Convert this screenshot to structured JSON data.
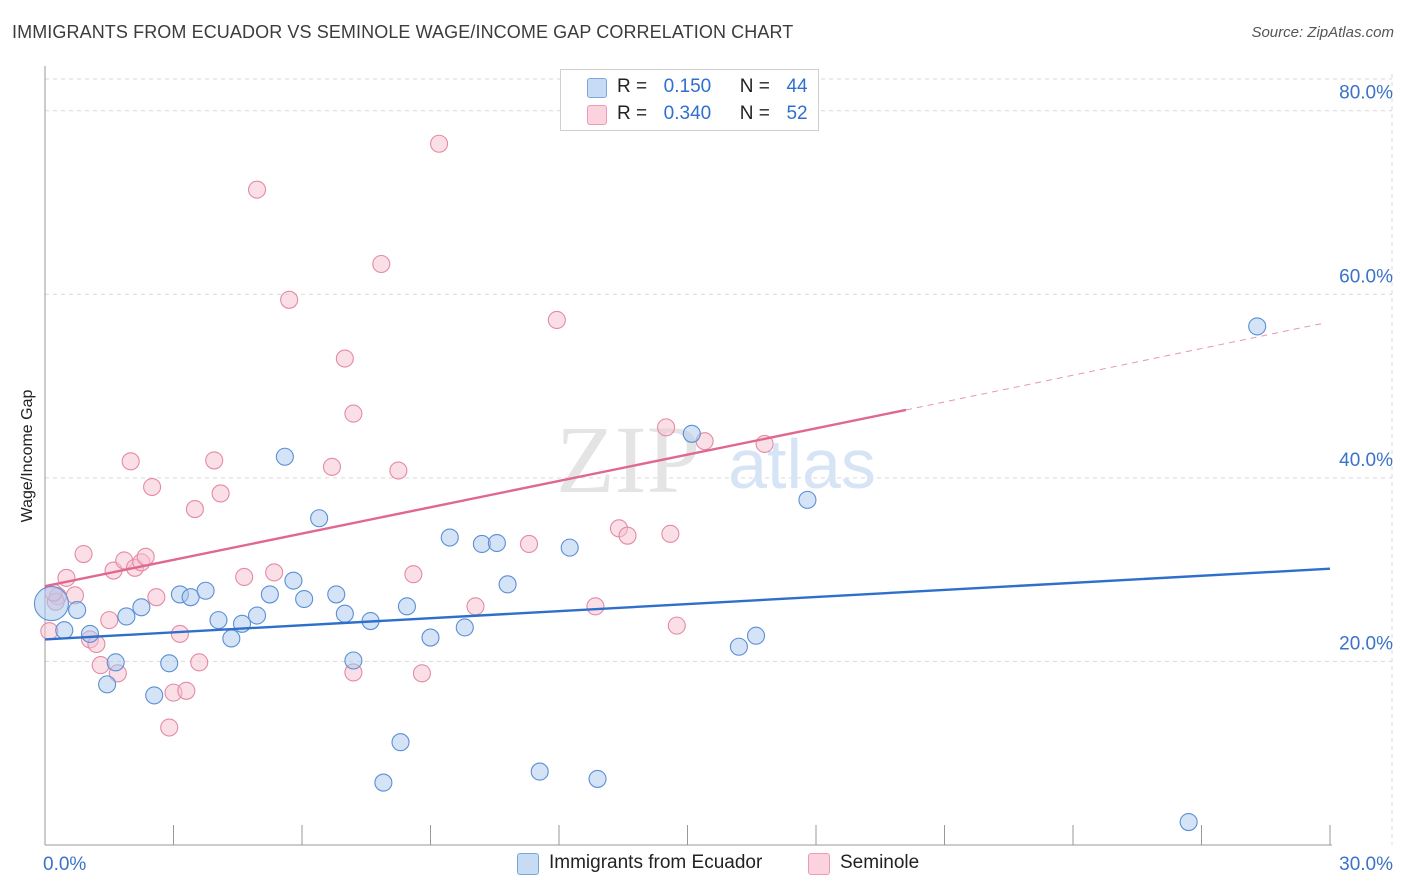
{
  "title": "IMMIGRANTS FROM ECUADOR VS SEMINOLE WAGE/INCOME GAP CORRELATION CHART",
  "source": "Source: ZipAtlas.com",
  "watermark": {
    "zip": "ZIP",
    "atlas": "atlas"
  },
  "colors": {
    "blue_fill": "#a9c8ee",
    "blue_stroke": "#5b8fd6",
    "blue_line": "#2e6fcc",
    "pink_fill": "#f7bfd0",
    "pink_stroke": "#e48aa5",
    "pink_line": "#e06890",
    "tick_label": "#3a72c8",
    "grid": "#d9d9d9"
  },
  "legend_top": [
    {
      "series": "blue",
      "r_label": "R =",
      "r_value": "0.150",
      "n_label": "N =",
      "n_value": "44"
    },
    {
      "series": "pink",
      "r_label": "R =",
      "r_value": "0.340",
      "n_label": "N =",
      "n_value": "52"
    }
  ],
  "legend_bottom": [
    {
      "series": "blue",
      "label": "Immigrants from Ecuador"
    },
    {
      "series": "pink",
      "label": "Seminole"
    }
  ],
  "chart_data": {
    "type": "scatter",
    "title": "IMMIGRANTS FROM ECUADOR VS SEMINOLE WAGE/INCOME GAP CORRELATION CHART",
    "xlabel": "",
    "ylabel": "Wage/Income Gap",
    "xlim": [
      0,
      30
    ],
    "ylim": [
      0,
      84
    ],
    "x_tick_labels": [
      {
        "value": 0,
        "label": "0.0%"
      },
      {
        "value": 30,
        "label": "30.0%"
      }
    ],
    "y_tick_labels": [
      {
        "value": 20,
        "label": "20.0%"
      },
      {
        "value": 40,
        "label": "40.0%"
      },
      {
        "value": 60,
        "label": "60.0%"
      },
      {
        "value": 80,
        "label": "80.0%"
      }
    ],
    "series": [
      {
        "name": "Immigrants from Ecuador",
        "color": "blue",
        "r": 0.15,
        "n": 44,
        "trend": {
          "x": [
            0,
            30
          ],
          "y": [
            22.4,
            30.1
          ]
        },
        "points": [
          [
            0.15,
            26.3
          ],
          [
            0.45,
            23.4
          ],
          [
            0.75,
            25.6
          ],
          [
            1.05,
            23.0
          ],
          [
            1.65,
            19.9
          ],
          [
            1.45,
            17.5
          ],
          [
            1.9,
            24.9
          ],
          [
            2.25,
            25.9
          ],
          [
            2.55,
            16.3
          ],
          [
            2.9,
            19.8
          ],
          [
            3.15,
            27.3
          ],
          [
            3.4,
            27.0
          ],
          [
            3.75,
            27.7
          ],
          [
            4.05,
            24.5
          ],
          [
            4.35,
            22.5
          ],
          [
            4.6,
            24.1
          ],
          [
            4.95,
            25.0
          ],
          [
            5.25,
            27.3
          ],
          [
            5.6,
            42.3
          ],
          [
            5.8,
            28.8
          ],
          [
            6.05,
            26.8
          ],
          [
            6.4,
            35.6
          ],
          [
            6.8,
            27.3
          ],
          [
            7.0,
            25.2
          ],
          [
            7.2,
            20.1
          ],
          [
            7.6,
            24.4
          ],
          [
            8.3,
            11.2
          ],
          [
            7.9,
            6.8
          ],
          [
            8.45,
            26.0
          ],
          [
            9.0,
            22.6
          ],
          [
            9.45,
            33.5
          ],
          [
            9.8,
            23.7
          ],
          [
            10.2,
            32.8
          ],
          [
            10.55,
            32.9
          ],
          [
            10.8,
            28.4
          ],
          [
            11.55,
            8.0
          ],
          [
            12.25,
            32.4
          ],
          [
            12.9,
            7.2
          ],
          [
            15.1,
            44.8
          ],
          [
            16.2,
            21.6
          ],
          [
            16.6,
            22.8
          ],
          [
            17.8,
            37.6
          ],
          [
            28.3,
            56.5
          ],
          [
            26.7,
            2.5
          ]
        ]
      },
      {
        "name": "Seminole",
        "color": "pink",
        "r": 0.34,
        "n": 52,
        "trend": {
          "x": [
            0,
            20.1
          ],
          "y": [
            28.2,
            47.4
          ]
        },
        "trend_dashed": {
          "x": [
            20.1,
            29.9
          ],
          "y": [
            47.4,
            56.9
          ]
        },
        "points": [
          [
            0.1,
            23.3
          ],
          [
            0.3,
            27.1
          ],
          [
            0.5,
            29.1
          ],
          [
            0.7,
            27.2
          ],
          [
            0.9,
            31.7
          ],
          [
            1.05,
            22.4
          ],
          [
            1.2,
            21.9
          ],
          [
            1.3,
            19.6
          ],
          [
            1.5,
            24.5
          ],
          [
            1.6,
            29.9
          ],
          [
            1.7,
            18.7
          ],
          [
            1.85,
            31.0
          ],
          [
            2.0,
            41.8
          ],
          [
            2.1,
            30.2
          ],
          [
            2.25,
            30.8
          ],
          [
            2.35,
            31.4
          ],
          [
            2.5,
            39.0
          ],
          [
            2.6,
            27.0
          ],
          [
            2.9,
            12.8
          ],
          [
            3.0,
            16.6
          ],
          [
            3.15,
            23.0
          ],
          [
            3.3,
            16.8
          ],
          [
            3.5,
            36.6
          ],
          [
            3.6,
            19.9
          ],
          [
            3.95,
            41.9
          ],
          [
            4.1,
            38.3
          ],
          [
            4.65,
            29.2
          ],
          [
            4.95,
            71.4
          ],
          [
            5.35,
            29.7
          ],
          [
            5.7,
            59.4
          ],
          [
            6.7,
            41.2
          ],
          [
            7.0,
            53.0
          ],
          [
            7.2,
            47.0
          ],
          [
            7.2,
            18.8
          ],
          [
            7.85,
            63.3
          ],
          [
            8.25,
            40.8
          ],
          [
            8.6,
            29.5
          ],
          [
            8.8,
            18.7
          ],
          [
            9.2,
            76.4
          ],
          [
            10.05,
            26.0
          ],
          [
            11.3,
            32.8
          ],
          [
            11.95,
            57.2
          ],
          [
            12.85,
            26.0
          ],
          [
            13.4,
            34.5
          ],
          [
            13.6,
            33.7
          ],
          [
            14.5,
            45.5
          ],
          [
            14.6,
            33.9
          ],
          [
            14.75,
            23.9
          ],
          [
            15.4,
            44.0
          ],
          [
            16.8,
            43.7
          ],
          [
            0.25,
            26.5
          ],
          [
            0.2,
            27.5
          ]
        ]
      }
    ]
  }
}
